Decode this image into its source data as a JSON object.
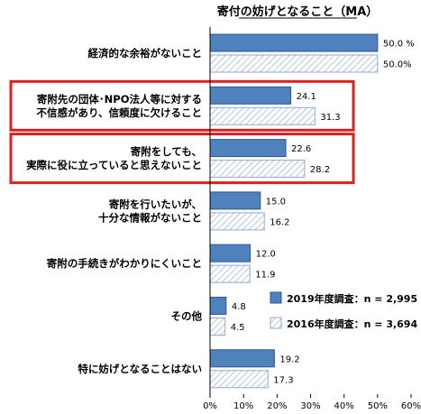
{
  "chart_data": {
    "type": "bar",
    "orientation": "horizontal",
    "title": "寄付の妨げとなること（MA）",
    "categories": [
      [
        "経済的な余裕がないこと"
      ],
      [
        "寄附先の団体･NPO法人等に対する",
        "不信感があり、信頼度に欠けること"
      ],
      [
        "寄附をしても、",
        "実際に役に立っていると思えないこと"
      ],
      [
        "寄附を行いたいが、",
        "十分な情報がないこと"
      ],
      [
        "寄附の手続きがわかりにくいこと"
      ],
      [
        "その他"
      ],
      [
        "特に妨げとなることはない"
      ]
    ],
    "series": [
      {
        "name": "2019年度調査：n = 2,995",
        "values": [
          50.0,
          24.1,
          22.6,
          15.0,
          12.0,
          4.8,
          19.2
        ],
        "labels": [
          "50.0 %",
          "24.1",
          "22.6",
          "15.0",
          "12.0",
          "4.8",
          "19.2"
        ],
        "color": "#4f81bd",
        "pattern": "solid"
      },
      {
        "name": "2016年度調査：n = 3,694",
        "values": [
          50.0,
          31.3,
          28.2,
          16.2,
          11.9,
          4.5,
          17.3
        ],
        "labels": [
          "50.0%",
          "31.3",
          "28.2",
          "16.2",
          "11.9",
          "4.5",
          "17.3"
        ],
        "color": "#b8cce4",
        "pattern": "hatched"
      }
    ],
    "highlighted_categories": [
      1,
      2
    ],
    "highlight_color": "#e02020",
    "xlim": [
      0,
      60
    ],
    "xticks": [
      "0%",
      "10%",
      "20%",
      "30%",
      "40%",
      "50%",
      "60%"
    ],
    "xtick_values": [
      0,
      10,
      20,
      30,
      40,
      50,
      60
    ],
    "grid": false,
    "legend_position": "bottom-right"
  }
}
